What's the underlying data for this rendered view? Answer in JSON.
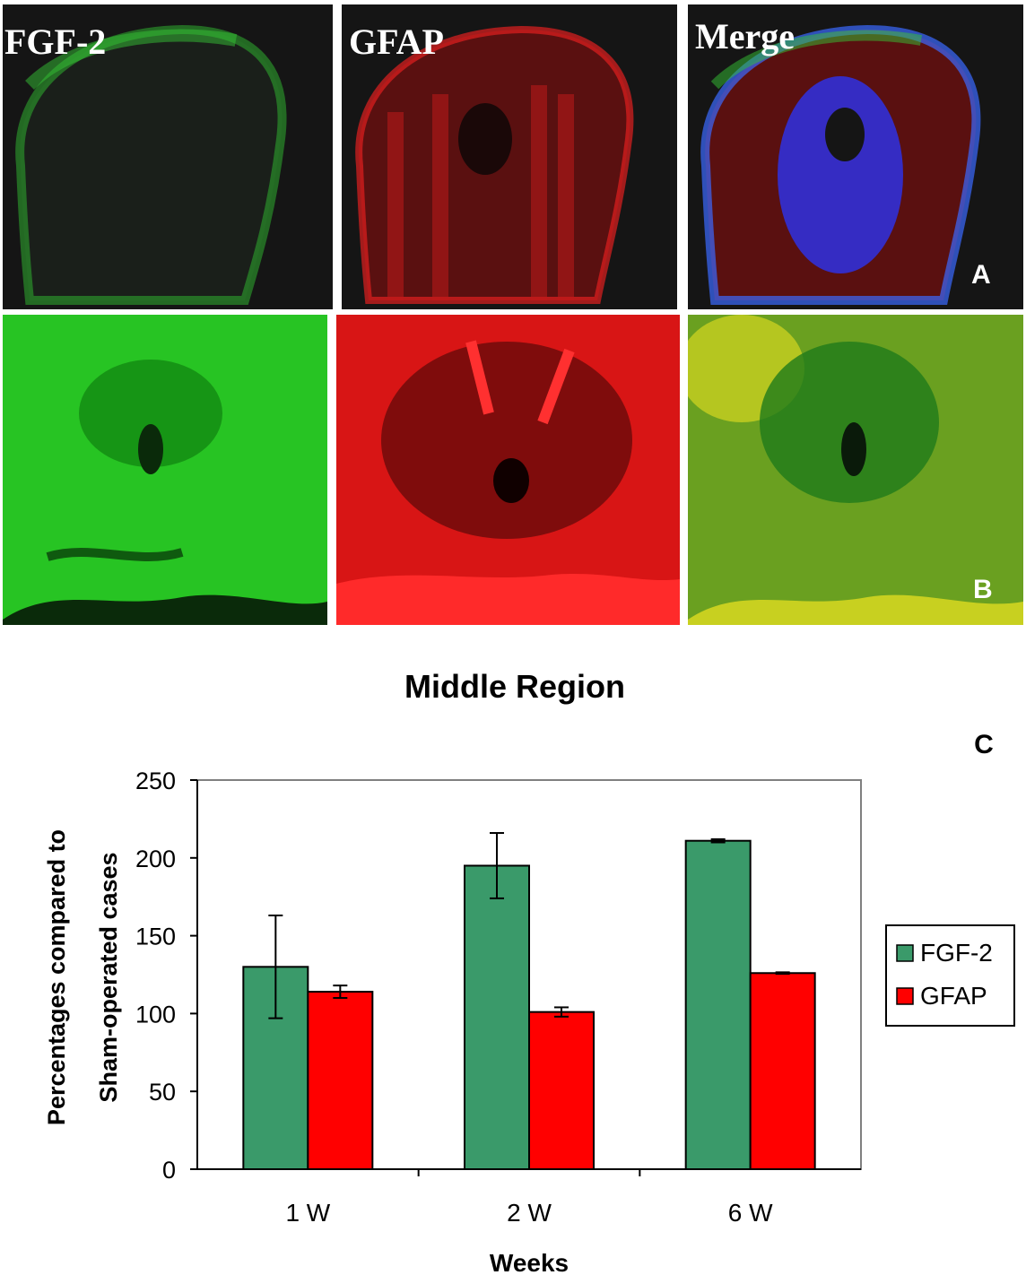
{
  "panels": {
    "row_a": {
      "labels": [
        "FGF-2",
        "GFAP",
        "Merge"
      ],
      "letter": "A"
    },
    "row_b": {
      "letter": "B"
    }
  },
  "colors": {
    "fgf2_green": "#3a9a6a",
    "gfap_red": "#ff0000",
    "stain_green": "#22d11f",
    "stain_red": "#ff1a1a",
    "stain_blue": "#2a35ff"
  },
  "chart_data": {
    "type": "bar",
    "title": "Middle Region",
    "panel_letter": "C",
    "xlabel": "Weeks",
    "ylabel_lines": [
      "Percentages compared to",
      "Sham-operated cases"
    ],
    "categories": [
      "1 W",
      "2 W",
      "6 W"
    ],
    "ylim": [
      0,
      250
    ],
    "yticks": [
      0,
      50,
      100,
      150,
      200,
      250
    ],
    "series": [
      {
        "name": "FGF-2",
        "color": "#3a9a6a",
        "values": [
          130,
          195,
          211
        ],
        "errors": [
          33,
          21,
          1
        ]
      },
      {
        "name": "GFAP",
        "color": "#ff0000",
        "values": [
          114,
          101,
          126
        ],
        "errors": [
          4,
          3,
          0.5
        ]
      }
    ],
    "grid": false,
    "legend": "right"
  }
}
